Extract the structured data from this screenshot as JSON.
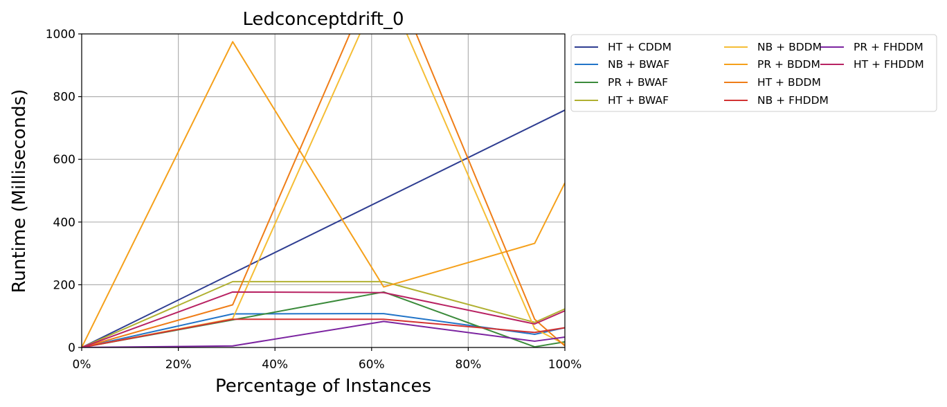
{
  "chart_data": {
    "type": "line",
    "title": "Ledconceptdrift_0",
    "xlabel": "Percentage of Instances",
    "ylabel": "Runtime (Milliseconds)",
    "xlim": [
      0,
      100
    ],
    "ylim": [
      0,
      1000
    ],
    "xticks": [
      0,
      20,
      40,
      60,
      80,
      100
    ],
    "xtick_labels": [
      "0%",
      "20%",
      "40%",
      "60%",
      "80%",
      "100%"
    ],
    "yticks": [
      0,
      200,
      400,
      600,
      800,
      1000
    ],
    "ytick_labels": [
      "0",
      "200",
      "400",
      "600",
      "800",
      "1000"
    ],
    "grid": true,
    "legend_placement": "outside upper-right",
    "x": [
      0,
      31.25,
      62.5,
      93.75,
      100
    ],
    "series": [
      {
        "name": "HT + CDDM",
        "color": "#2e3d91",
        "points": [
          [
            0,
            0
          ],
          [
            100,
            757
          ]
        ]
      },
      {
        "name": "NB + BWAF",
        "color": "#2174c8",
        "values": [
          0,
          107,
          108,
          42,
          63
        ]
      },
      {
        "name": "PR + BWAF",
        "color": "#3a8a3a",
        "values": [
          0,
          88,
          177,
          2,
          18
        ]
      },
      {
        "name": "HT + BWAF",
        "color": "#b0b030",
        "values": [
          0,
          210,
          210,
          80,
          123
        ]
      },
      {
        "name": "NB + BDDM",
        "color": "#f5bd35",
        "values": [
          0,
          92,
          1170,
          60,
          10
        ]
      },
      {
        "name": "PR + BDDM",
        "color": "#f5a01a",
        "values": [
          0,
          975,
          193,
          332,
          525
        ]
      },
      {
        "name": "HT + BDDM",
        "color": "#ef7d17",
        "values": [
          0,
          136,
          1250,
          90,
          5
        ]
      },
      {
        "name": "NB + FHDDM",
        "color": "#d23232",
        "values": [
          0,
          90,
          90,
          48,
          63
        ]
      },
      {
        "name": "PR + FHDDM",
        "color": "#7b23a0",
        "values": [
          0,
          5,
          83,
          20,
          33
        ]
      },
      {
        "name": "HT + FHDDM",
        "color": "#b82262",
        "values": [
          0,
          177,
          175,
          75,
          117
        ]
      }
    ]
  }
}
